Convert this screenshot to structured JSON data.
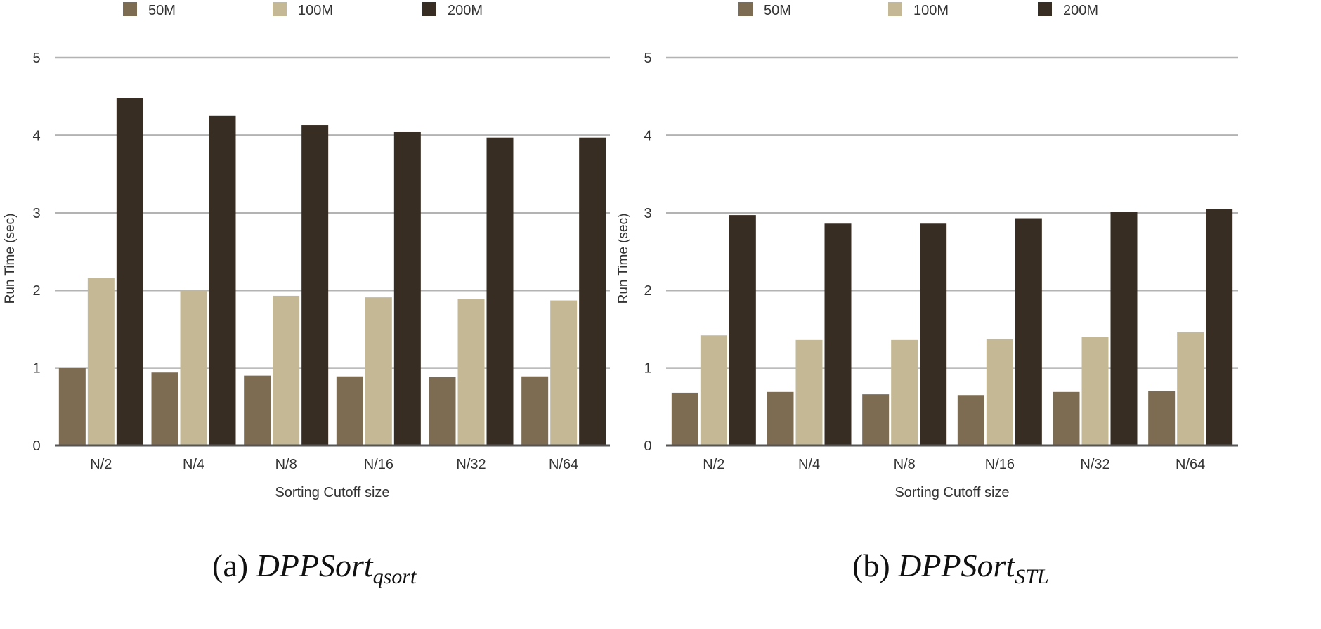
{
  "colors": {
    "50M": "#7e6c52",
    "100M": "#c4b994",
    "200M": "#382d22",
    "grid": "#b3b3b3",
    "axis": "#555555",
    "text": "#333333"
  },
  "chart_data": [
    {
      "type": "bar",
      "caption": {
        "prefix": "(a) ",
        "name": "DPPSort",
        "subscript": "qsort"
      },
      "categories": [
        "N/2",
        "N/4",
        "N/8",
        "N/16",
        "N/32",
        "N/64"
      ],
      "series": [
        {
          "name": "50M",
          "values": [
            1.0,
            0.94,
            0.9,
            0.89,
            0.88,
            0.89
          ]
        },
        {
          "name": "100M",
          "values": [
            2.16,
            2.0,
            1.93,
            1.91,
            1.89,
            1.87
          ]
        },
        {
          "name": "200M",
          "values": [
            4.48,
            4.25,
            4.13,
            4.04,
            3.97,
            3.97
          ]
        }
      ],
      "xlabel": "Sorting Cutoff size",
      "ylabel": "Run Time (sec)",
      "ylim": [
        0,
        5
      ],
      "yticks": [
        "0",
        "1",
        "2",
        "3",
        "4",
        "5"
      ],
      "grid": true,
      "legend_position": "top"
    },
    {
      "type": "bar",
      "caption": {
        "prefix": "(b) ",
        "name": "DPPSort",
        "subscript": "STL"
      },
      "categories": [
        "N/2",
        "N/4",
        "N/8",
        "N/16",
        "N/32",
        "N/64"
      ],
      "series": [
        {
          "name": "50M",
          "values": [
            0.68,
            0.69,
            0.66,
            0.65,
            0.69,
            0.7
          ]
        },
        {
          "name": "100M",
          "values": [
            1.42,
            1.36,
            1.36,
            1.37,
            1.4,
            1.46
          ]
        },
        {
          "name": "200M",
          "values": [
            2.97,
            2.86,
            2.86,
            2.93,
            3.01,
            3.05
          ]
        }
      ],
      "xlabel": "Sorting Cutoff size",
      "ylabel": "Run Time (sec)",
      "ylim": [
        0,
        5
      ],
      "yticks": [
        "0",
        "1",
        "2",
        "3",
        "4",
        "5"
      ],
      "grid": true,
      "legend_position": "top"
    }
  ]
}
